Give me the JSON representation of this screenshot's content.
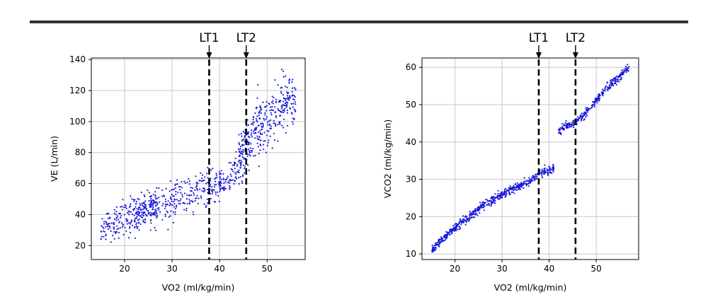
{
  "colors": {
    "points": "#1a1adc",
    "grid": "#c8c8c8",
    "threshold_line": "#000000",
    "top_rule": "#333333"
  },
  "chart_data": [
    {
      "type": "scatter",
      "xlabel": "VO2 (ml/kg/min)",
      "ylabel": "VE (L/min)",
      "xlim": [
        13,
        58
      ],
      "ylim": [
        11,
        141
      ],
      "x_ticks": [
        20,
        30,
        40,
        50
      ],
      "y_ticks": [
        20,
        40,
        60,
        80,
        100,
        120,
        140
      ],
      "grid": true,
      "markers": [
        {
          "label": "LT1",
          "x": 37.8
        },
        {
          "label": "LT2",
          "x": 45.6
        }
      ],
      "point_trend": [
        {
          "x": 15,
          "y": 30
        },
        {
          "x": 20,
          "y": 38
        },
        {
          "x": 25,
          "y": 44
        },
        {
          "x": 30,
          "y": 50
        },
        {
          "x": 35,
          "y": 55
        },
        {
          "x": 38,
          "y": 58
        },
        {
          "x": 42,
          "y": 62
        },
        {
          "x": 44,
          "y": 72
        },
        {
          "x": 46,
          "y": 88
        },
        {
          "x": 50,
          "y": 100
        },
        {
          "x": 54,
          "y": 113
        },
        {
          "x": 56,
          "y": 115
        }
      ]
    },
    {
      "type": "scatter",
      "xlabel": "VO2 (ml/kg/min)",
      "ylabel": "VCO2 (ml/kg/min)",
      "xlim": [
        13,
        59
      ],
      "ylim": [
        8.5,
        62.5
      ],
      "x_ticks": [
        20,
        30,
        40,
        50
      ],
      "y_ticks": [
        10,
        20,
        30,
        40,
        50,
        60
      ],
      "grid": true,
      "markers": [
        {
          "label": "LT1",
          "x": 37.8
        },
        {
          "label": "LT2",
          "x": 45.6
        }
      ],
      "point_trend": [
        {
          "x": 15,
          "y": 11
        },
        {
          "x": 20,
          "y": 17
        },
        {
          "x": 25,
          "y": 22
        },
        {
          "x": 30,
          "y": 26
        },
        {
          "x": 35,
          "y": 29
        },
        {
          "x": 38,
          "y": 31.5
        },
        {
          "x": 41,
          "y": 33
        },
        {
          "x": 42,
          "y": 43
        },
        {
          "x": 45,
          "y": 45
        },
        {
          "x": 48,
          "y": 48
        },
        {
          "x": 52,
          "y": 54
        },
        {
          "x": 57,
          "y": 60
        }
      ]
    }
  ]
}
